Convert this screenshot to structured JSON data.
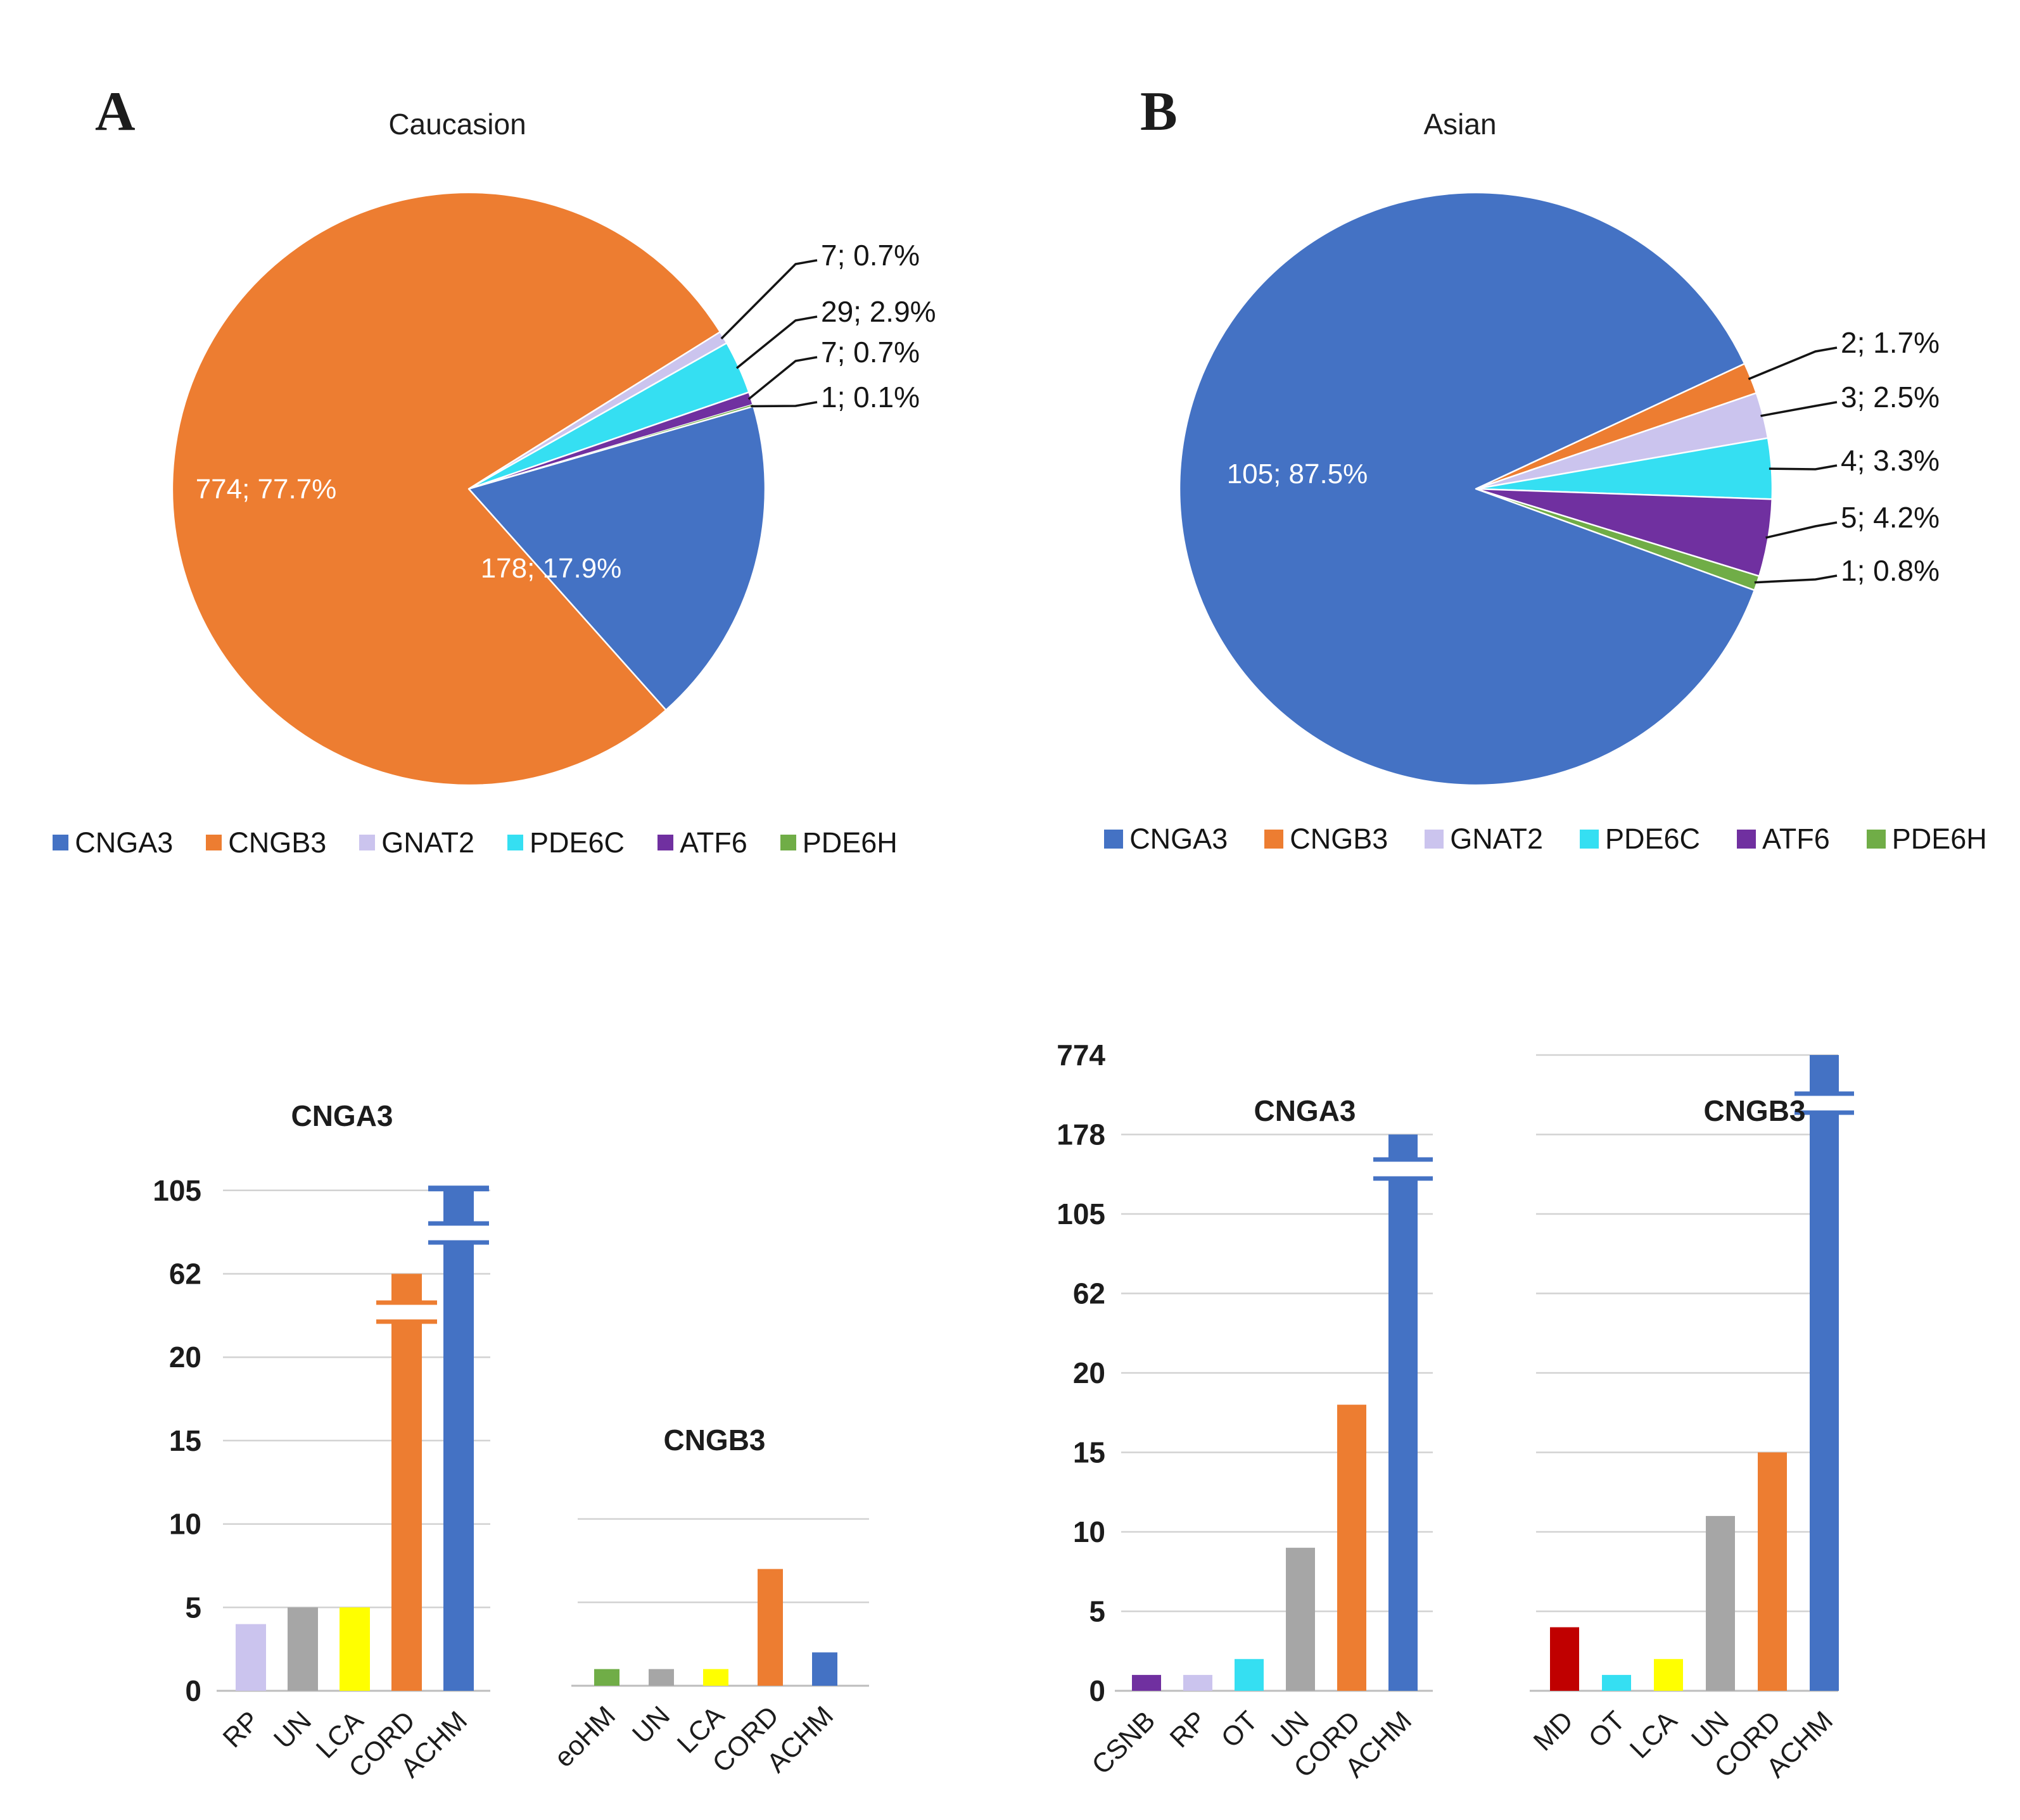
{
  "colors": {
    "CNGA3": "#4472C4",
    "CNGB3": "#ED7D31",
    "GNAT2": "#CBC4EE",
    "PDE6C": "#35DFF2",
    "ATF6": "#7030A0",
    "PDE6H": "#70AD47",
    "gray": "#A6A6A6",
    "yellow": "#FFFF00",
    "dark_red": "#C00000",
    "grid": "#D2D2D2",
    "axis": "#BDBDBD",
    "leader": "#141414",
    "label_white": "#FFFFFF"
  },
  "panel_a": {
    "letter": "A",
    "pie_title": "Caucasion"
  },
  "panel_b": {
    "letter": "B",
    "pie_title": "Asian"
  },
  "legend": {
    "items": [
      {
        "label": "CNGA3"
      },
      {
        "label": "CNGB3"
      },
      {
        "label": "GNAT2"
      },
      {
        "label": "PDE6C"
      },
      {
        "label": "ATF6"
      },
      {
        "label": "PDE6H"
      }
    ]
  },
  "chart_data": [
    {
      "id": "pie_caucasian",
      "type": "pie",
      "title": "Caucasion",
      "legend_position": "bottom",
      "slices": [
        {
          "label": "GNAT2",
          "value": 7,
          "pct": 0.7,
          "callout": "7; 0.7%"
        },
        {
          "label": "PDE6C",
          "value": 29,
          "pct": 2.9,
          "callout": "29; 2.9%"
        },
        {
          "label": "ATF6",
          "value": 7,
          "pct": 0.7,
          "callout": "7; 0.7%"
        },
        {
          "label": "PDE6H",
          "value": 1,
          "pct": 0.1,
          "callout": "1; 0.1%"
        },
        {
          "label": "CNGA3",
          "value": 178,
          "pct": 17.9,
          "inner_label": "178; 17.9%"
        },
        {
          "label": "CNGB3",
          "value": 774,
          "pct": 77.7,
          "inner_label": "774; 77.7%"
        }
      ]
    },
    {
      "id": "pie_asian",
      "type": "pie",
      "title": "Asian",
      "legend_position": "bottom",
      "slices": [
        {
          "label": "CNGB3",
          "value": 2,
          "pct": 1.7,
          "callout": "2; 1.7%"
        },
        {
          "label": "GNAT2",
          "value": 3,
          "pct": 2.5,
          "callout": "3; 2.5%"
        },
        {
          "label": "PDE6C",
          "value": 4,
          "pct": 3.3,
          "callout": "4; 3.3%"
        },
        {
          "label": "ATF6",
          "value": 5,
          "pct": 4.2,
          "callout": "5; 4.2%"
        },
        {
          "label": "PDE6H",
          "value": 1,
          "pct": 0.8,
          "callout": "1; 0.8%"
        },
        {
          "label": "CNGA3",
          "value": 105,
          "pct": 87.5,
          "inner_label": "105; 87.5%"
        }
      ]
    },
    {
      "id": "bar_caucasian_cnga3",
      "type": "bar",
      "title": "CNGA3",
      "group": "Caucasian",
      "broken_axis": true,
      "y_ticks": [
        0,
        5,
        10,
        15,
        20,
        62,
        105
      ],
      "show_y_labels": true,
      "categories": [
        "RP",
        "UN",
        "LCA",
        "CORD",
        "ACHM"
      ],
      "values": [
        4,
        5,
        5,
        62,
        105
      ],
      "bar_color_keys": [
        "GNAT2",
        "gray",
        "yellow",
        "CNGB3",
        "CNGA3"
      ],
      "axis_breaks": [
        {
          "category": "CORD"
        },
        {
          "category": "ACHM",
          "top_cap": true
        }
      ]
    },
    {
      "id": "bar_caucasian_cngb3",
      "type": "bar",
      "title": "CNGB3",
      "group": "Caucasian",
      "broken_axis": false,
      "y_ticks": [
        0,
        5,
        10
      ],
      "show_y_labels": false,
      "categories": [
        "eoHM",
        "UN",
        "LCA",
        "CORD",
        "ACHM"
      ],
      "values": [
        1,
        1,
        1,
        7,
        2
      ],
      "bar_color_keys": [
        "PDE6H",
        "gray",
        "yellow",
        "CNGB3",
        "CNGA3"
      ],
      "axis_breaks": []
    },
    {
      "id": "bar_asian_cnga3",
      "type": "bar",
      "title": "CNGA3",
      "group": "Asian",
      "broken_axis": true,
      "y_ticks": [
        0,
        5,
        10,
        15,
        20,
        62,
        105,
        178,
        774
      ],
      "gridline_max_tick": 178,
      "show_y_labels": true,
      "categories": [
        "CSNB",
        "RP",
        "OT",
        "UN",
        "CORD",
        "ACHM"
      ],
      "values": [
        1,
        1,
        2,
        9,
        18,
        178
      ],
      "bar_color_keys": [
        "ATF6",
        "GNAT2",
        "PDE6C",
        "gray",
        "CNGB3",
        "CNGA3"
      ],
      "axis_breaks": [
        {
          "category": "ACHM"
        }
      ]
    },
    {
      "id": "bar_asian_cngb3",
      "type": "bar",
      "title": "CNGB3",
      "group": "Asian",
      "broken_axis": true,
      "y_ticks": [
        0,
        5,
        10,
        15,
        20,
        62,
        105,
        178,
        774
      ],
      "show_y_labels": false,
      "categories": [
        "MD",
        "OT",
        "LCA",
        "UN",
        "CORD",
        "ACHM"
      ],
      "values": [
        4,
        1,
        2,
        11,
        15,
        774
      ],
      "bar_color_keys": [
        "dark_red",
        "PDE6C",
        "yellow",
        "gray",
        "CNGB3",
        "CNGA3"
      ],
      "axis_breaks": [
        {
          "category": "ACHM"
        }
      ]
    }
  ]
}
